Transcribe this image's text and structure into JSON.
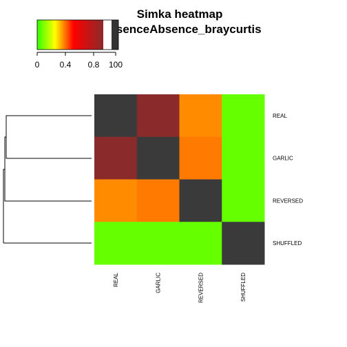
{
  "chart_data": {
    "type": "heatmap",
    "title_lines": [
      "Simka heatmap",
      "presenceAbsence_braycurtis"
    ],
    "rows": [
      "REAL",
      "GARLIC",
      "REVERSED",
      "SHUFFLED"
    ],
    "columns": [
      "REAL",
      "GARLIC",
      "REVERSED",
      "SHUFFLED"
    ],
    "values": [
      [
        1.0,
        0.86,
        0.4,
        0.15
      ],
      [
        0.86,
        1.0,
        0.47,
        0.16
      ],
      [
        0.4,
        0.47,
        1.0,
        0.16
      ],
      [
        0.15,
        0.16,
        0.16,
        1.0
      ]
    ],
    "color_key": {
      "ticks": [
        "0",
        "0.4",
        "0.8",
        "100"
      ],
      "stops": [
        "#33ff00",
        "#ffff00",
        "#ff0000",
        "#8b2a2a",
        "#ffffff",
        "#333333"
      ]
    },
    "cell_colors": {
      "diagonal": "#3a3a3a",
      "high": "#8b2a2a",
      "mid_low": "#ff8c00",
      "mid_high": "#ff7a00",
      "low": "#66ff00"
    },
    "dendrogram": "row",
    "grid": false
  }
}
